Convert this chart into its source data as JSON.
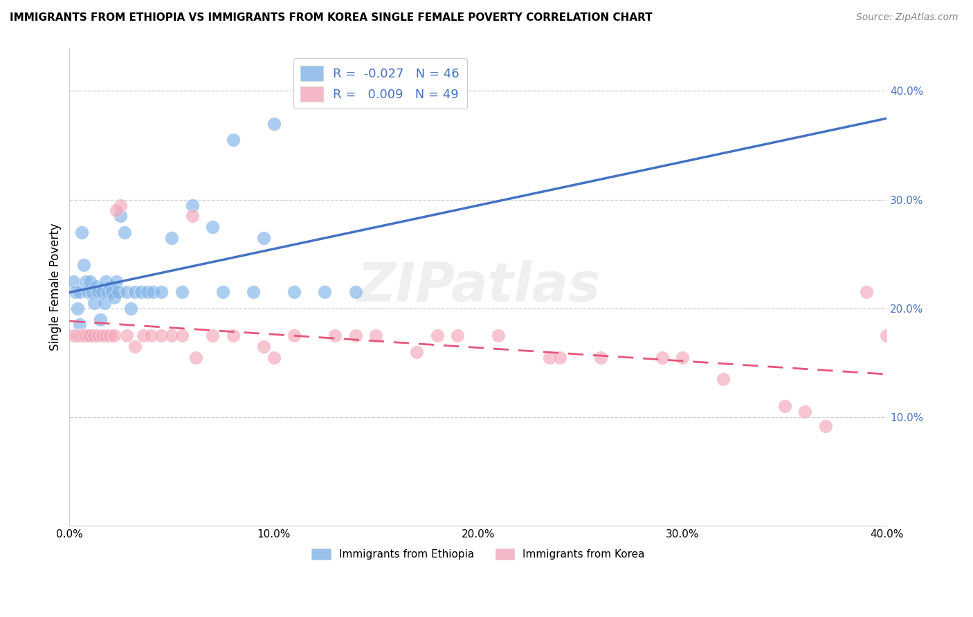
{
  "title": "IMMIGRANTS FROM ETHIOPIA VS IMMIGRANTS FROM KOREA SINGLE FEMALE POVERTY CORRELATION CHART",
  "source": "Source: ZipAtlas.com",
  "ylabel": "Single Female Poverty",
  "right_yticks": [
    "10.0%",
    "20.0%",
    "30.0%",
    "40.0%"
  ],
  "right_ytick_vals": [
    0.1,
    0.2,
    0.3,
    0.4
  ],
  "xlim": [
    0.0,
    0.4
  ],
  "ylim": [
    0.0,
    0.44
  ],
  "legend_ethiopia": "R =  -0.027   N = 46",
  "legend_korea": "R =   0.009   N = 49",
  "legend_label1": "Immigrants from Ethiopia",
  "legend_label2": "Immigrants from Korea",
  "color_ethiopia": "#7fb3e8",
  "color_korea": "#f4a7b9",
  "line_ethiopia": "#4472c4",
  "line_korea": "#e8547a",
  "watermark": "ZIPatlas",
  "ethiopia_x": [
    0.002,
    0.003,
    0.003,
    0.004,
    0.004,
    0.005,
    0.005,
    0.006,
    0.007,
    0.008,
    0.009,
    0.01,
    0.01,
    0.011,
    0.012,
    0.013,
    0.013,
    0.014,
    0.015,
    0.016,
    0.017,
    0.018,
    0.019,
    0.02,
    0.021,
    0.022,
    0.023,
    0.024,
    0.025,
    0.027,
    0.028,
    0.03,
    0.032,
    0.034,
    0.036,
    0.038,
    0.04,
    0.043,
    0.046,
    0.05,
    0.06,
    0.07,
    0.08,
    0.1,
    0.13,
    0.15
  ],
  "ethiopia_y": [
    0.225,
    0.215,
    0.175,
    0.215,
    0.195,
    0.215,
    0.175,
    0.265,
    0.235,
    0.265,
    0.215,
    0.225,
    0.195,
    0.225,
    0.21,
    0.225,
    0.2,
    0.215,
    0.185,
    0.215,
    0.2,
    0.22,
    0.215,
    0.215,
    0.225,
    0.215,
    0.21,
    0.225,
    0.285,
    0.265,
    0.215,
    0.195,
    0.215,
    0.195,
    0.215,
    0.215,
    0.215,
    0.215,
    0.215,
    0.265,
    0.295,
    0.27,
    0.35,
    0.37,
    0.215,
    0.215
  ],
  "korea_x": [
    0.002,
    0.003,
    0.004,
    0.005,
    0.006,
    0.007,
    0.008,
    0.009,
    0.01,
    0.011,
    0.013,
    0.015,
    0.017,
    0.019,
    0.021,
    0.024,
    0.027,
    0.03,
    0.033,
    0.037,
    0.04,
    0.044,
    0.048,
    0.052,
    0.058,
    0.064,
    0.07,
    0.08,
    0.09,
    0.1,
    0.11,
    0.12,
    0.13,
    0.14,
    0.155,
    0.17,
    0.185,
    0.2,
    0.22,
    0.245,
    0.27,
    0.3,
    0.33,
    0.36,
    0.38,
    0.395,
    0.4,
    0.025,
    0.06
  ],
  "korea_y": [
    0.175,
    0.175,
    0.175,
    0.175,
    0.175,
    0.175,
    0.175,
    0.175,
    0.175,
    0.175,
    0.175,
    0.175,
    0.175,
    0.175,
    0.295,
    0.175,
    0.175,
    0.175,
    0.165,
    0.175,
    0.175,
    0.175,
    0.175,
    0.175,
    0.155,
    0.175,
    0.155,
    0.175,
    0.175,
    0.155,
    0.175,
    0.175,
    0.175,
    0.175,
    0.175,
    0.155,
    0.175,
    0.175,
    0.175,
    0.155,
    0.155,
    0.155,
    0.135,
    0.105,
    0.092,
    0.215,
    0.175,
    0.285,
    0.29
  ]
}
